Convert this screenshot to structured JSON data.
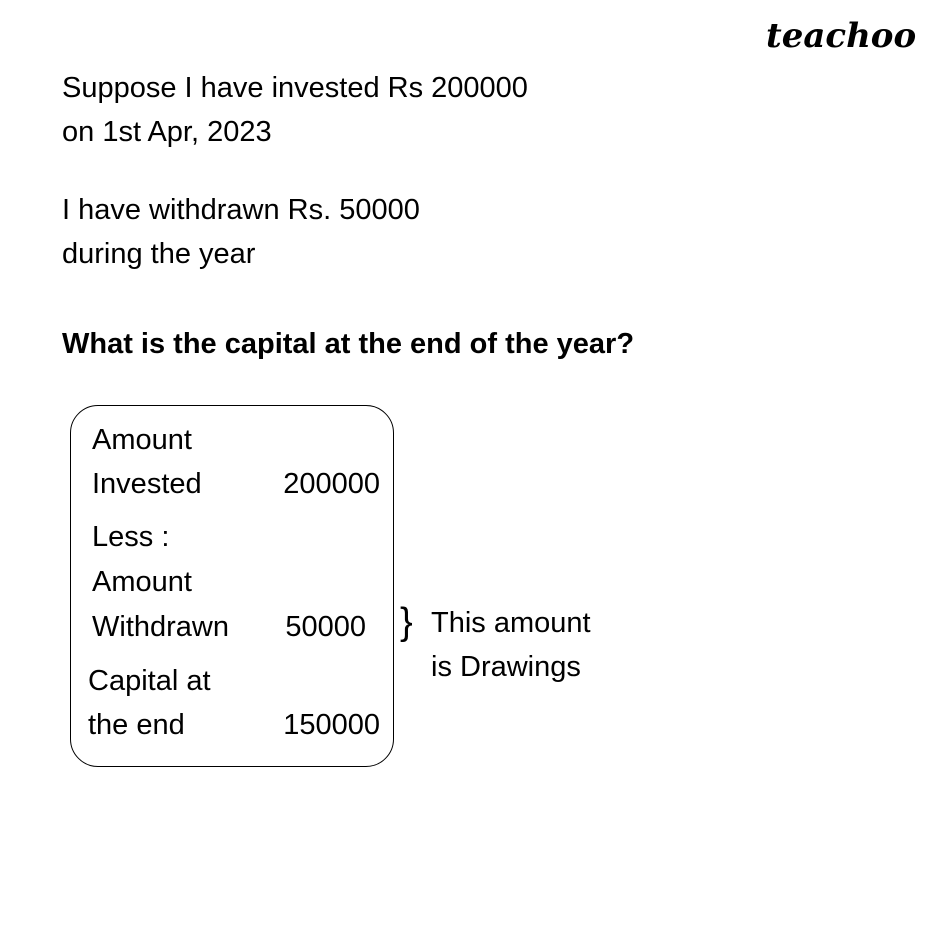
{
  "logo": "teachoo",
  "intro": {
    "line1": "Suppose I have invested Rs 200000",
    "line2": "on 1st Apr, 2023",
    "line3": "I have withdrawn Rs. 50000",
    "line4": "during the year"
  },
  "question": "What is the capital at the end of the year?",
  "box": {
    "invested_label_1": "Amount",
    "invested_label_2": "Invested",
    "invested_value": "200000",
    "less_label": "Less :",
    "withdrawn_label_1": "Amount",
    "withdrawn_label_2": "Withdrawn",
    "withdrawn_value": "50000",
    "capital_label_1": "Capital at",
    "capital_label_2": "the end",
    "capital_value": "150000"
  },
  "note": {
    "brace": "}",
    "line1": "This amount",
    "line2": "is Drawings"
  }
}
